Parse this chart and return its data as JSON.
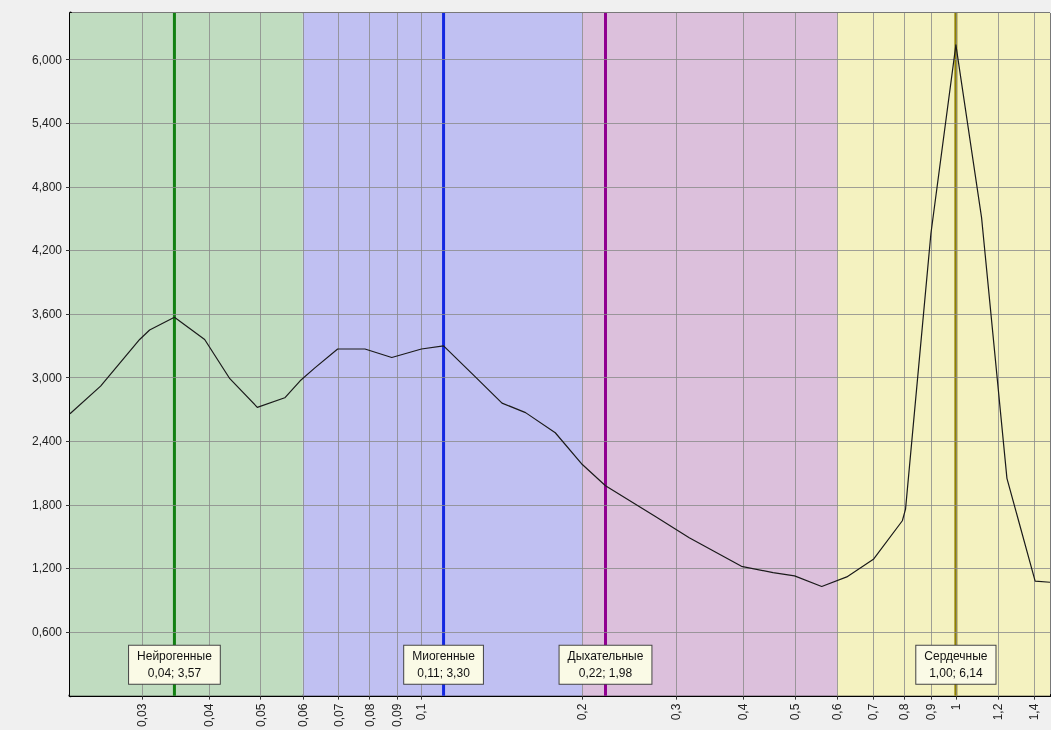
{
  "chart_data": {
    "type": "line",
    "log": "x",
    "grid": true,
    "marker": "none",
    "line_style": "solid",
    "xlim": [
      0.022,
      1.5
    ],
    "ylim": [
      0,
      6.44
    ],
    "xticks": [
      {
        "value": 0.03,
        "label": "0,03"
      },
      {
        "value": 0.04,
        "label": "0,04"
      },
      {
        "value": 0.05,
        "label": "0,05"
      },
      {
        "value": 0.06,
        "label": "0,06"
      },
      {
        "value": 0.07,
        "label": "0,07"
      },
      {
        "value": 0.08,
        "label": "0,08"
      },
      {
        "value": 0.09,
        "label": "0,09"
      },
      {
        "value": 0.1,
        "label": "0,1"
      },
      {
        "value": 0.2,
        "label": "0,2"
      },
      {
        "value": 0.3,
        "label": "0,3"
      },
      {
        "value": 0.4,
        "label": "0,4"
      },
      {
        "value": 0.5,
        "label": "0,5"
      },
      {
        "value": 0.6,
        "label": "0,6"
      },
      {
        "value": 0.7,
        "label": "0,7"
      },
      {
        "value": 0.8,
        "label": "0,8"
      },
      {
        "value": 0.9,
        "label": "0,9"
      },
      1,
      {
        "value": 1.2,
        "label": "1,2"
      },
      {
        "value": 1.4,
        "label": "1,4"
      }
    ],
    "yticks": [
      {
        "value": 0.6,
        "label": "0,600"
      },
      {
        "value": 1.2,
        "label": "1,200"
      },
      {
        "value": 1.8,
        "label": "1,800"
      },
      {
        "value": 2.4,
        "label": "2,400"
      },
      {
        "value": 3,
        "label": "3,000"
      },
      {
        "value": 3.6,
        "label": "3,600"
      },
      {
        "value": 4.2,
        "label": "4,200"
      },
      {
        "value": 4.8,
        "label": "4,800"
      },
      {
        "value": 5.4,
        "label": "5,400"
      },
      {
        "value": 6,
        "label": "6,000"
      }
    ],
    "x": [
      0.022,
      0.0251,
      0.0297,
      0.031,
      0.0345,
      0.0393,
      0.0438,
      0.0493,
      0.0555,
      0.0593,
      0.0631,
      0.0697,
      0.0784,
      0.088,
      0.1,
      0.11,
      0.126,
      0.1415,
      0.1566,
      0.178,
      0.2,
      0.221,
      0.274,
      0.317,
      0.397,
      0.455,
      0.499,
      0.561,
      0.625,
      0.702,
      0.794,
      0.805,
      0.898,
      1.0,
      1.117,
      1.246,
      1.407,
      1.5
    ],
    "series": [
      {
        "color": "#1a1a1a",
        "values": [
          2.66,
          2.92,
          3.36,
          3.45,
          3.57,
          3.36,
          2.99,
          2.72,
          2.81,
          2.97,
          3.09,
          3.27,
          3.27,
          3.19,
          3.27,
          3.3,
          3.01,
          2.76,
          2.67,
          2.48,
          2.18,
          1.98,
          1.69,
          1.49,
          1.22,
          1.16,
          1.13,
          1.03,
          1.12,
          1.29,
          1.65,
          1.76,
          4.36,
          6.14,
          4.51,
          2.05,
          1.08,
          1.07
        ]
      }
    ],
    "bands": [
      {
        "axis": "x",
        "from": 0.022,
        "to": 0.06,
        "color": "#c0dcc0"
      },
      {
        "axis": "x",
        "from": 0.06,
        "to": 0.2,
        "color": "#c0c0f2"
      },
      {
        "axis": "x",
        "from": 0.2,
        "to": 0.6,
        "color": "#dcc0dc"
      },
      {
        "axis": "x",
        "from": 0.6,
        "to": 1.5,
        "color": "#f4f2c0"
      }
    ],
    "ref_lines": [
      {
        "axis": "x",
        "value": 0.0345,
        "label": "Нейрогенные\n0,04; 3,57",
        "color": "#128012"
      },
      {
        "axis": "x",
        "value": 0.11,
        "label": "Миогенные\n0,11; 3,30",
        "color": "#1428e0"
      },
      {
        "axis": "x",
        "value": 0.221,
        "label": "Дыхательные\n0,22; 1,98",
        "color": "#900090"
      },
      {
        "axis": "x",
        "value": 1.0,
        "label": "Сердечные\n1,00; 6,14",
        "color": "#908000"
      }
    ]
  }
}
